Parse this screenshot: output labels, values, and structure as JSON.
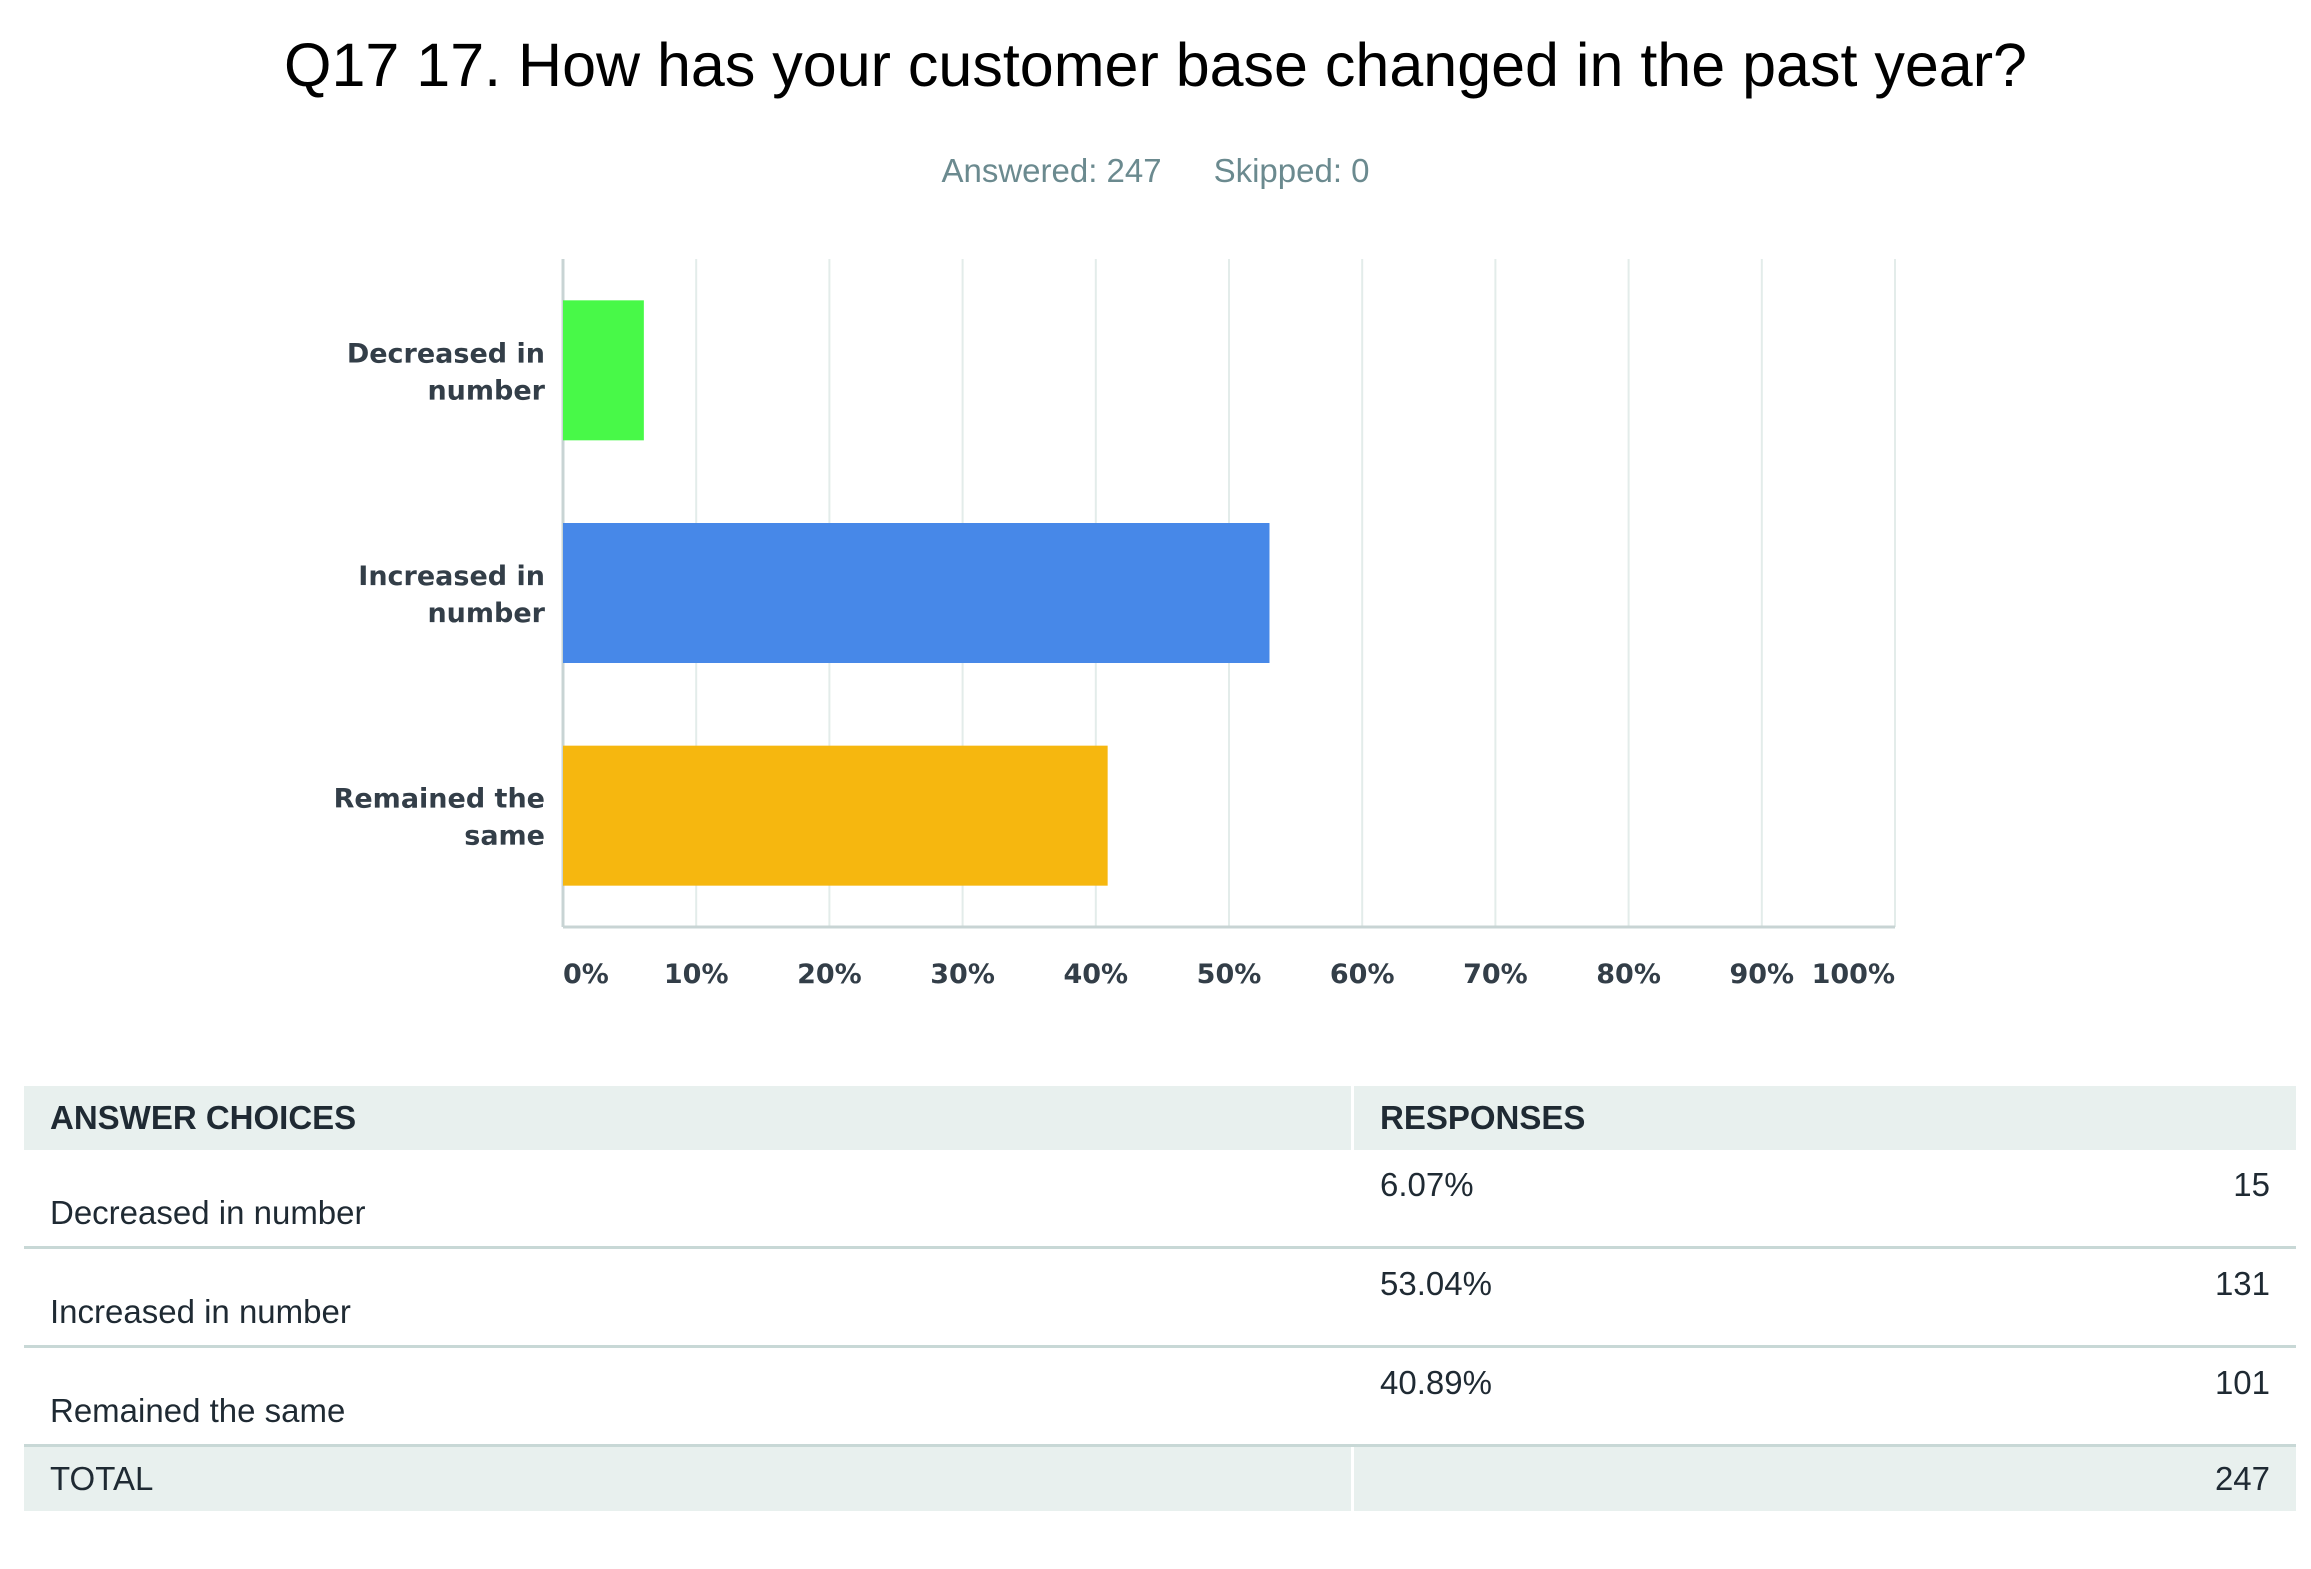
{
  "title": "Q17 17. How has your customer base changed in the past year?",
  "answered": "Answered: 247",
  "skipped": "Skipped: 0",
  "chart_data": {
    "type": "bar",
    "orientation": "horizontal",
    "categories": [
      "Decreased in number",
      "Increased in number",
      "Remained the same"
    ],
    "category_lines": [
      [
        "Decreased in",
        "number"
      ],
      [
        "Increased in",
        "number"
      ],
      [
        "Remained the",
        "same"
      ]
    ],
    "values": [
      6.07,
      53.04,
      40.89
    ],
    "colors": [
      "#48f948",
      "#4788e8",
      "#f6b70f"
    ],
    "xlim": [
      0,
      100
    ],
    "xticks": [
      "0%",
      "10%",
      "20%",
      "30%",
      "40%",
      "50%",
      "60%",
      "70%",
      "80%",
      "90%",
      "100%"
    ],
    "grid": true
  },
  "table": {
    "headers": [
      "ANSWER CHOICES",
      "RESPONSES"
    ],
    "rows": [
      {
        "choice": "Decreased in number",
        "percent": "6.07%",
        "count": "15"
      },
      {
        "choice": "Increased in number",
        "percent": "53.04%",
        "count": "131"
      },
      {
        "choice": "Remained the same",
        "percent": "40.89%",
        "count": "101"
      }
    ],
    "total_label": "TOTAL",
    "total_count": "247"
  }
}
